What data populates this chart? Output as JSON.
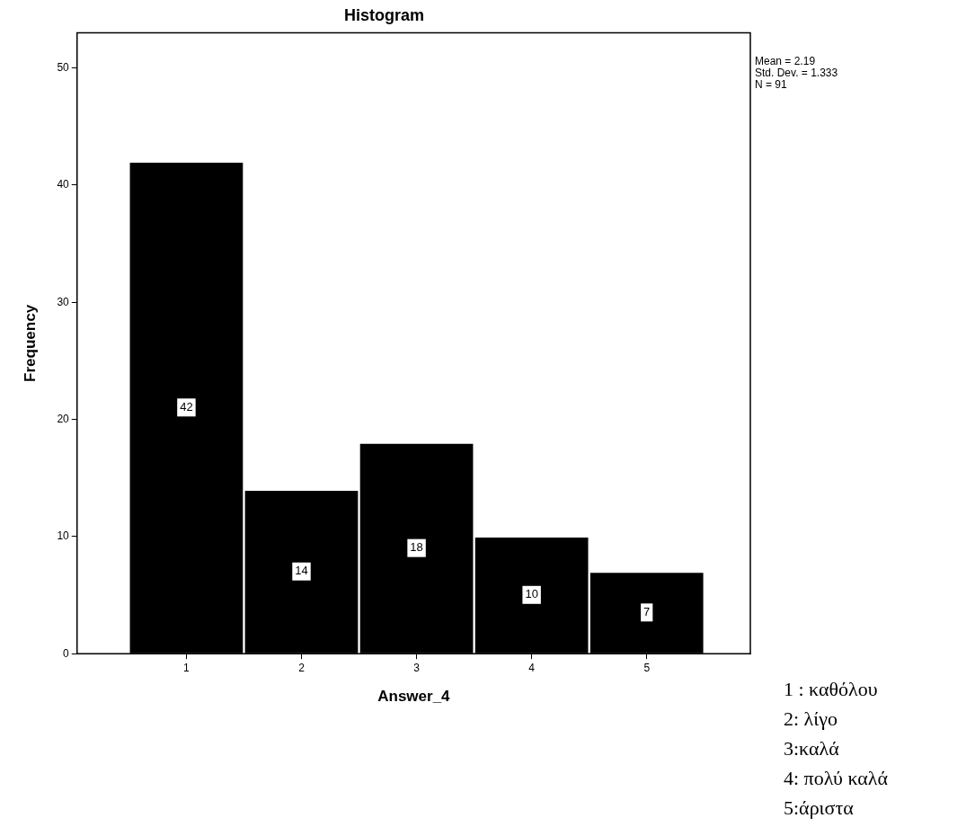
{
  "chart_data": {
    "type": "histogram",
    "title": "Histogram",
    "xlabel": "Answer_4",
    "ylabel": "Frequency",
    "bins": [
      0.5,
      1.5,
      2.5,
      3.5,
      4.5,
      5.5
    ],
    "values": [
      42,
      14,
      18,
      10,
      7
    ],
    "color": "#000000",
    "xlim": [
      0.05,
      5.9
    ],
    "xticks": [
      1,
      2,
      3,
      4,
      5
    ],
    "ylim": [
      0,
      53
    ],
    "yticks": [
      0,
      10,
      20,
      30,
      40,
      50
    ],
    "data_labels": true,
    "annotations": [
      "Mean = 2.19",
      "Std. Dev. = 1.333",
      "N = 91",
      "1 : καθόλου",
      "2: λίγο",
      "3:καλά",
      "4: πολύ καλά",
      "5:άριστα"
    ]
  }
}
